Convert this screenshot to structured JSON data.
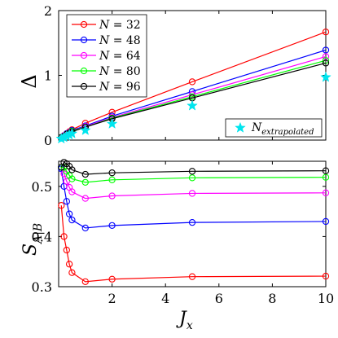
{
  "chart_data": [
    {
      "type": "line",
      "ylabel": "Δ",
      "xlim": [
        0,
        10
      ],
      "ylim": [
        0,
        2
      ],
      "xticks": [
        0,
        2,
        4,
        6,
        8,
        10
      ],
      "yticks": [
        0,
        1,
        2
      ],
      "yticklabels": [
        "0",
        "1",
        "2"
      ],
      "legend_position": "top-left",
      "series": [
        {
          "name": "N = 32",
          "color": "#ff0000",
          "marker": "circle",
          "x": [
            0.1,
            0.2,
            0.3,
            0.4,
            0.5,
            1,
            2,
            5,
            10
          ],
          "y": [
            0.04,
            0.07,
            0.1,
            0.13,
            0.16,
            0.26,
            0.43,
            0.9,
            1.67
          ]
        },
        {
          "name": "N = 48",
          "color": "#0000ff",
          "marker": "circle",
          "x": [
            0.1,
            0.2,
            0.3,
            0.4,
            0.5,
            1,
            2,
            5,
            10
          ],
          "y": [
            0.04,
            0.07,
            0.1,
            0.12,
            0.15,
            0.22,
            0.37,
            0.75,
            1.39
          ]
        },
        {
          "name": "N = 64",
          "color": "#ff00ff",
          "marker": "circle",
          "x": [
            0.1,
            0.2,
            0.3,
            0.4,
            0.5,
            1,
            2,
            5,
            10
          ],
          "y": [
            0.04,
            0.07,
            0.09,
            0.12,
            0.14,
            0.21,
            0.35,
            0.7,
            1.29
          ]
        },
        {
          "name": "N = 80",
          "color": "#00ff00",
          "marker": "circle",
          "x": [
            0.1,
            0.2,
            0.3,
            0.4,
            0.5,
            1,
            2,
            5,
            10
          ],
          "y": [
            0.04,
            0.06,
            0.09,
            0.11,
            0.14,
            0.2,
            0.34,
            0.67,
            1.23
          ]
        },
        {
          "name": "N = 96",
          "color": "#000000",
          "marker": "circle",
          "x": [
            0.1,
            0.2,
            0.3,
            0.4,
            0.5,
            1,
            2,
            5,
            10
          ],
          "y": [
            0.04,
            0.06,
            0.09,
            0.11,
            0.13,
            0.2,
            0.33,
            0.65,
            1.19
          ]
        },
        {
          "name": "N_extrapolated",
          "color": "#00e5ee",
          "marker": "star",
          "x": [
            0.1,
            0.2,
            0.3,
            0.4,
            0.5,
            1,
            2,
            5,
            10
          ],
          "y": [
            0.02,
            0.04,
            0.06,
            0.08,
            0.1,
            0.15,
            0.25,
            0.53,
            0.97
          ]
        }
      ]
    },
    {
      "type": "line",
      "xlabel": "J_x",
      "ylabel": "S_A|B",
      "xlim": [
        0,
        10
      ],
      "ylim": [
        0.3,
        0.55
      ],
      "xticks": [
        0,
        2,
        4,
        6,
        8,
        10
      ],
      "xticklabels": [
        "",
        "2",
        "4",
        "6",
        "8",
        "10"
      ],
      "yticks": [
        0.3,
        0.4,
        0.5
      ],
      "yticklabels": [
        "0.3",
        "0.4",
        "0.5"
      ],
      "series": [
        {
          "name": "N = 32",
          "color": "#ff0000",
          "marker": "circle",
          "x": [
            0.1,
            0.2,
            0.3,
            0.4,
            0.5,
            1,
            2,
            5,
            10
          ],
          "y": [
            0.462,
            0.4,
            0.373,
            0.345,
            0.328,
            0.31,
            0.315,
            0.32,
            0.321
          ]
        },
        {
          "name": "N = 48",
          "color": "#0000ff",
          "marker": "circle",
          "x": [
            0.1,
            0.2,
            0.3,
            0.4,
            0.5,
            1,
            2,
            5,
            10
          ],
          "y": [
            0.535,
            0.5,
            0.47,
            0.445,
            0.433,
            0.417,
            0.422,
            0.428,
            0.43
          ]
        },
        {
          "name": "N = 64",
          "color": "#ff00ff",
          "marker": "circle",
          "x": [
            0.1,
            0.2,
            0.3,
            0.4,
            0.5,
            1,
            2,
            5,
            10
          ],
          "y": [
            0.538,
            0.525,
            0.51,
            0.498,
            0.489,
            0.476,
            0.481,
            0.486,
            0.487
          ]
        },
        {
          "name": "N = 80",
          "color": "#00ff00",
          "marker": "circle",
          "x": [
            0.1,
            0.2,
            0.3,
            0.4,
            0.5,
            1,
            2,
            5,
            10
          ],
          "y": [
            0.538,
            0.538,
            0.53,
            0.522,
            0.515,
            0.508,
            0.513,
            0.517,
            0.518
          ]
        },
        {
          "name": "N = 96",
          "color": "#000000",
          "marker": "circle",
          "x": [
            0.1,
            0.2,
            0.3,
            0.4,
            0.5,
            1,
            2,
            5,
            10
          ],
          "y": [
            0.538,
            0.548,
            0.545,
            0.54,
            0.533,
            0.524,
            0.527,
            0.53,
            0.531
          ]
        }
      ]
    }
  ]
}
